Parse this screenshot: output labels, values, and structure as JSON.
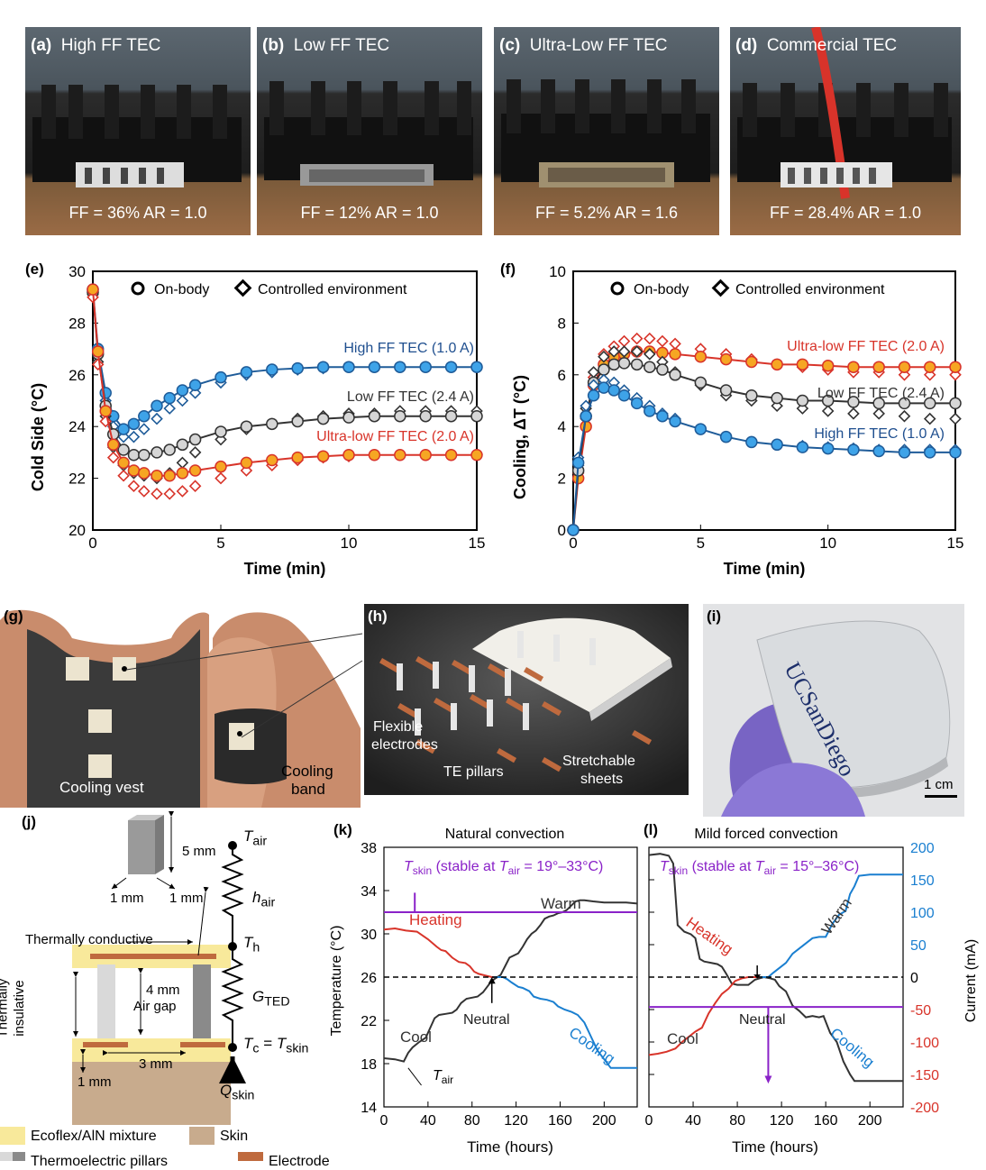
{
  "photos": [
    {
      "letter": "(a)",
      "title": "High FF TEC",
      "ff": "FF = 36% AR = 1.0"
    },
    {
      "letter": "(b)",
      "title": "Low FF TEC",
      "ff": "FF = 12% AR = 1.0"
    },
    {
      "letter": "(c)",
      "title": "Ultra-Low FF TEC",
      "ff": "FF = 5.2% AR = 1.6"
    },
    {
      "letter": "(d)",
      "title": "Commercial TEC",
      "ff": "FF = 28.4% AR = 1.0"
    }
  ],
  "colors": {
    "blue": "#1a7fd0",
    "blue_dark": "#1f4f8f",
    "red": "#d8342a",
    "orange": "#f6a623",
    "purple": "#8a22c8",
    "grey": "#555555"
  },
  "chart_data": [
    {
      "panel": "(e)",
      "type": "scatter",
      "xlabel": "Time (min)",
      "ylabel": "Cold Side (°C)",
      "xlim": [
        0,
        15
      ],
      "ylim": [
        20,
        30
      ],
      "xticks": [
        0,
        5,
        10,
        15
      ],
      "yticks": [
        20,
        22,
        24,
        26,
        28,
        30
      ],
      "legend": [
        "On-body",
        "Controlled environment"
      ],
      "series": [
        {
          "name": "High FF TEC (1.0 A)",
          "x": [
            0,
            0.2,
            0.5,
            0.8,
            1.2,
            1.6,
            2,
            2.5,
            3,
            3.5,
            4,
            5,
            6,
            7,
            8,
            9,
            10,
            11,
            12,
            13,
            14,
            15
          ],
          "onbody": [
            29.3,
            27.0,
            25.3,
            24.4,
            23.9,
            24.1,
            24.4,
            24.8,
            25.1,
            25.4,
            25.6,
            25.9,
            26.1,
            26.2,
            26.25,
            26.3,
            26.3,
            26.3,
            26.3,
            26.3,
            26.3,
            26.3
          ],
          "controlled": [
            29.2,
            26.8,
            25.0,
            24.0,
            23.6,
            23.6,
            23.9,
            24.3,
            24.7,
            25.0,
            25.3,
            25.7,
            26.0,
            26.1,
            26.2,
            26.25,
            26.3,
            26.3,
            26.3,
            26.3,
            26.3,
            26.3
          ]
        },
        {
          "name": "Low FF TEC (2.4 A)",
          "x": [
            0,
            0.2,
            0.5,
            0.8,
            1.2,
            1.6,
            2,
            2.5,
            3,
            3.5,
            4,
            5,
            6,
            7,
            8,
            9,
            10,
            11,
            12,
            13,
            14,
            15
          ],
          "onbody": [
            29.2,
            26.8,
            24.8,
            23.7,
            23.1,
            22.9,
            22.9,
            23.0,
            23.1,
            23.3,
            23.5,
            23.8,
            24.0,
            24.1,
            24.2,
            24.3,
            24.35,
            24.4,
            24.4,
            24.4,
            24.4,
            24.4
          ],
          "controlled": [
            29.1,
            26.5,
            24.4,
            23.2,
            22.5,
            22.2,
            22.1,
            22.0,
            22.2,
            22.6,
            23.0,
            23.5,
            23.9,
            24.1,
            24.3,
            24.4,
            24.5,
            24.5,
            24.6,
            24.6,
            24.6,
            24.6
          ]
        },
        {
          "name": "Ultra-low FF TEC (2.0 A)",
          "x": [
            0,
            0.2,
            0.5,
            0.8,
            1.2,
            1.6,
            2,
            2.5,
            3,
            3.5,
            4,
            5,
            6,
            7,
            8,
            9,
            10,
            11,
            12,
            13,
            14,
            15
          ],
          "onbody": [
            29.3,
            26.9,
            24.6,
            23.3,
            22.6,
            22.3,
            22.2,
            22.1,
            22.1,
            22.2,
            22.3,
            22.45,
            22.6,
            22.7,
            22.8,
            22.85,
            22.9,
            22.9,
            22.9,
            22.9,
            22.9,
            22.9
          ],
          "controlled": [
            29.0,
            26.4,
            24.2,
            22.8,
            22.1,
            21.7,
            21.5,
            21.4,
            21.4,
            21.5,
            21.7,
            22.0,
            22.3,
            22.5,
            22.7,
            22.8,
            22.85,
            22.9,
            22.9,
            22.9,
            22.9,
            22.9
          ]
        }
      ]
    },
    {
      "panel": "(f)",
      "type": "scatter",
      "xlabel": "Time (min)",
      "ylabel": "Cooling, ΔT (°C)",
      "xlim": [
        0,
        15
      ],
      "ylim": [
        0,
        10
      ],
      "xticks": [
        0,
        5,
        10,
        15
      ],
      "yticks": [
        0,
        2,
        4,
        6,
        8,
        10
      ],
      "legend": [
        "On-body",
        "Controlled environment"
      ],
      "series": [
        {
          "name": "Ultra-low FF TEC (2.0 A)",
          "x": [
            0,
            0.2,
            0.5,
            0.8,
            1.2,
            1.6,
            2,
            2.5,
            3,
            3.5,
            4,
            5,
            6,
            7,
            8,
            9,
            10,
            11,
            12,
            13,
            14,
            15
          ],
          "onbody": [
            0,
            2.0,
            4.0,
            5.6,
            6.4,
            6.7,
            6.8,
            6.9,
            6.9,
            6.85,
            6.8,
            6.7,
            6.6,
            6.5,
            6.4,
            6.4,
            6.35,
            6.3,
            6.3,
            6.3,
            6.3,
            6.3
          ],
          "controlled": [
            0,
            2.2,
            4.3,
            5.9,
            6.8,
            7.1,
            7.3,
            7.4,
            7.4,
            7.3,
            7.2,
            7.0,
            6.8,
            6.6,
            6.4,
            6.3,
            6.2,
            6.1,
            6.1,
            6.0,
            6.0,
            6.0
          ]
        },
        {
          "name": "Low FF TEC (2.4 A)",
          "x": [
            0,
            0.2,
            0.5,
            0.8,
            1.2,
            1.6,
            2,
            2.5,
            3,
            3.5,
            4,
            5,
            6,
            7,
            8,
            9,
            10,
            11,
            12,
            13,
            14,
            15
          ],
          "onbody": [
            0,
            2.3,
            4.4,
            5.7,
            6.2,
            6.4,
            6.45,
            6.4,
            6.3,
            6.2,
            6.0,
            5.7,
            5.4,
            5.2,
            5.1,
            5.0,
            5.0,
            4.95,
            4.9,
            4.9,
            4.9,
            4.9
          ],
          "controlled": [
            0,
            2.5,
            4.7,
            6.1,
            6.7,
            6.9,
            6.9,
            6.9,
            6.8,
            6.5,
            6.1,
            5.6,
            5.2,
            5.0,
            4.8,
            4.7,
            4.6,
            4.5,
            4.5,
            4.4,
            4.3,
            4.3
          ]
        },
        {
          "name": "High FF TEC (1.0 A)",
          "x": [
            0,
            0.2,
            0.5,
            0.8,
            1.2,
            1.6,
            2,
            2.5,
            3,
            3.5,
            4,
            5,
            6,
            7,
            8,
            9,
            10,
            11,
            12,
            13,
            14,
            15
          ],
          "onbody": [
            0,
            2.6,
            4.4,
            5.2,
            5.5,
            5.4,
            5.2,
            4.9,
            4.6,
            4.4,
            4.2,
            3.9,
            3.6,
            3.4,
            3.3,
            3.2,
            3.15,
            3.1,
            3.05,
            3.0,
            3.0,
            3.0
          ],
          "controlled": [
            0,
            2.8,
            4.8,
            5.6,
            5.8,
            5.7,
            5.4,
            5.1,
            4.8,
            4.5,
            4.3,
            3.9,
            3.6,
            3.4,
            3.3,
            3.25,
            3.2,
            3.15,
            3.1,
            3.1,
            3.1,
            3.1
          ]
        }
      ]
    },
    {
      "panel": "(k)",
      "type": "line",
      "title": "Natural convection",
      "xlabel": "Time (hours)",
      "ylabel": "Temperature (°C)",
      "xlim": [
        0,
        230
      ],
      "ylim": [
        14,
        38
      ],
      "xticks": [
        0,
        40,
        80,
        120,
        160,
        200
      ],
      "yticks": [
        14,
        18,
        22,
        26,
        30,
        34,
        38
      ],
      "series": [
        {
          "name": "T_air",
          "color": "black",
          "x": [
            0,
            10,
            18,
            22,
            26,
            32,
            38,
            42,
            46,
            50,
            56,
            62,
            66,
            70,
            75,
            80,
            85,
            90,
            96,
            100,
            103,
            106,
            110,
            114,
            118,
            122,
            126,
            130,
            134,
            138,
            142,
            146,
            150,
            154,
            158,
            162,
            166,
            170,
            174,
            178,
            182,
            190,
            200,
            210,
            220,
            230
          ],
          "y": [
            18.5,
            18.4,
            18.2,
            19.0,
            19.5,
            20.0,
            20.4,
            21.3,
            22.2,
            22.5,
            22.6,
            22.7,
            23.0,
            23.6,
            24.0,
            24.1,
            24.2,
            24.6,
            25.4,
            25.8,
            26.0,
            26.2,
            27.0,
            27.8,
            28.0,
            28.2,
            28.8,
            29.5,
            30.0,
            30.3,
            30.8,
            31.4,
            31.6,
            31.7,
            31.9,
            32.0,
            32.2,
            32.6,
            33.0,
            33.1,
            33.1,
            33.0,
            32.9,
            32.9,
            32.9,
            32.8
          ]
        },
        {
          "name": "Heating",
          "color": "red",
          "x": [
            0,
            10,
            20,
            30,
            40,
            48,
            52,
            56,
            62,
            68,
            74,
            78,
            82,
            86,
            90,
            94,
            98,
            100
          ],
          "y": [
            30.4,
            30.5,
            30.3,
            30.2,
            29.5,
            28.8,
            28.5,
            28.4,
            27.8,
            27.4,
            27.3,
            27.0,
            26.5,
            26.3,
            26.2,
            26.1,
            26.0,
            26.0
          ]
        },
        {
          "name": "Cooling",
          "color": "blue",
          "x": [
            100,
            104,
            108,
            112,
            116,
            122,
            126,
            132,
            136,
            142,
            148,
            154,
            158,
            164,
            170,
            176,
            182,
            188,
            194,
            200,
            206,
            212,
            220,
            230
          ],
          "y": [
            26.0,
            26.0,
            26.0,
            25.8,
            25.5,
            25.1,
            25.0,
            24.7,
            24.2,
            24.0,
            23.9,
            23.7,
            23.3,
            23.0,
            22.8,
            22.5,
            21.8,
            20.5,
            19.2,
            18.4,
            17.6,
            17.6,
            17.6,
            17.6
          ]
        },
        {
          "name": "T_skin",
          "color": "purple",
          "x": [
            0,
            230
          ],
          "y": [
            32.0,
            32.0
          ]
        },
        {
          "name": "Neutral",
          "color": "dashed",
          "x": [
            0,
            230
          ],
          "y": [
            26.0,
            26.0
          ]
        }
      ],
      "annotations": [
        "Heating",
        "Cooling",
        "Cool",
        "Warm",
        "Neutral"
      ],
      "tskin_label": {
        "pre": "T",
        "sub": "skin",
        "mid": " (stable at ",
        "tair": "T",
        "tairsub": "air",
        "range": " = 19°–33°C)"
      }
    },
    {
      "panel": "(l)",
      "type": "line",
      "title": "Mild forced convection",
      "xlabel": "Time (hours)",
      "ylabel": "Current (mA)",
      "xlim": [
        0,
        230
      ],
      "ylim": [
        -200,
        200
      ],
      "xticks": [
        0,
        40,
        80,
        120,
        160,
        200
      ],
      "yticks": [
        -200,
        -150,
        -100,
        -50,
        0,
        50,
        100,
        150,
        200
      ],
      "series": [
        {
          "name": "T_air",
          "color": "black",
          "x": [
            0,
            10,
            18,
            22,
            26,
            32,
            38,
            42,
            46,
            50,
            56,
            62,
            66,
            70,
            75,
            80,
            86,
            90,
            96,
            100,
            104,
            110,
            114,
            118,
            124,
            130,
            136,
            142,
            148,
            154,
            158,
            164,
            170,
            176,
            182,
            186,
            190,
            200,
            210,
            220,
            230
          ],
          "y": [
            188,
            190,
            187,
            175,
            80,
            70,
            66,
            60,
            28,
            24,
            22,
            20,
            16,
            5,
            -10,
            -12,
            -12,
            -12,
            -4,
            -2,
            0,
            -2,
            -4,
            -14,
            -22,
            -44,
            -52,
            -62,
            -60,
            -62,
            -60,
            -86,
            -100,
            -130,
            -150,
            -160,
            -160,
            -160,
            -160,
            -160,
            -160
          ]
        },
        {
          "name": "Heating",
          "color": "red",
          "x": [
            0,
            8,
            16,
            24,
            30,
            36,
            42,
            48,
            54,
            60,
            66,
            72,
            78,
            84,
            90,
            96,
            100
          ],
          "y": [
            -120,
            -118,
            -115,
            -110,
            -100,
            -92,
            -84,
            -78,
            -56,
            -40,
            -26,
            -18,
            -6,
            -2,
            0,
            0,
            0
          ]
        },
        {
          "name": "Cooling",
          "color": "blue",
          "x": [
            100,
            104,
            108,
            112,
            118,
            124,
            130,
            136,
            142,
            148,
            154,
            160,
            166,
            172,
            178,
            182,
            186,
            190,
            200,
            210,
            220,
            230
          ],
          "y": [
            0,
            0,
            0,
            6,
            14,
            22,
            36,
            44,
            52,
            60,
            62,
            62,
            82,
            96,
            102,
            128,
            140,
            156,
            158,
            158,
            158,
            158
          ]
        },
        {
          "name": "T_skin",
          "color": "purple",
          "x": [
            0,
            230
          ],
          "y": [
            -46,
            -46
          ]
        },
        {
          "name": "Neutral",
          "color": "dashed",
          "x": [
            0,
            230
          ],
          "y": [
            0,
            0
          ]
        }
      ],
      "annotations": [
        "Heating",
        "Cooling",
        "Cool",
        "Warm",
        "Neutral"
      ],
      "tskin_label": {
        "pre": "T",
        "sub": "skin",
        "mid": " (stable at ",
        "tair": "T",
        "tairsub": "air",
        "range": " = 15°–36°C)"
      }
    }
  ],
  "series_labels": {
    "e": [
      "High FF TEC (1.0 A)",
      "Low FF TEC (2.4 A)",
      "Ultra-low FF TEC (2.0 A)"
    ],
    "f": [
      "Ultra-low FF TEC (2.0 A)",
      "Low FF TEC (2.4 A)",
      "High FF TEC (1.0 A)"
    ]
  },
  "panel_g": {
    "letter": "(g)",
    "vest": "Cooling vest",
    "band_line1": "Cooling",
    "band_line2": "band"
  },
  "panel_h": {
    "letter": "(h)",
    "flex_line1": "Flexible",
    "flex_line2": "electrodes",
    "te": "TE pillars",
    "str_line1": "Stretchable",
    "str_line2": "sheets"
  },
  "panel_i": {
    "letter": "(i)",
    "scale": "1 cm",
    "logo": "UCSanDiego"
  },
  "panel_j": {
    "letter": "(j)",
    "dim5": "5 mm",
    "dim1a": "1 mm",
    "dim1b": "1 mm",
    "conductive": "Thermally conductive",
    "insulative_line1": "Thermally",
    "insulative_line2": "insulative",
    "dim4": "4 mm",
    "airgap": "Air gap",
    "dim1c": "1 mm",
    "dim3": "3 mm",
    "tair": "T",
    "tair_sub": "air",
    "hair": "h",
    "hair_sub": "air",
    "th": "T",
    "th_sub": "h",
    "gted": "G",
    "gted_sub": "TED",
    "tc": "T",
    "tc_sub": "c",
    "eq": " = ",
    "ts": "T",
    "ts_sub": "skin",
    "q": "Q",
    "q_sub": "skin"
  },
  "legend_j": [
    "Ecoflex/AlN mixture",
    "Skin",
    "Thermoelectric pillars",
    "Electrode"
  ],
  "k_labels": {
    "letter": "(k)",
    "heating": "Heating",
    "cooling": "Cooling",
    "cool": "Cool",
    "warm": "Warm",
    "neutral": "Neutral",
    "tair": "T",
    "tair_sub": "air"
  },
  "l_labels": {
    "letter": "(l)",
    "heating": "Heating",
    "cooling": "Cooling",
    "cool": "Cool",
    "warm": "Warm",
    "neutral": "Neutral"
  }
}
